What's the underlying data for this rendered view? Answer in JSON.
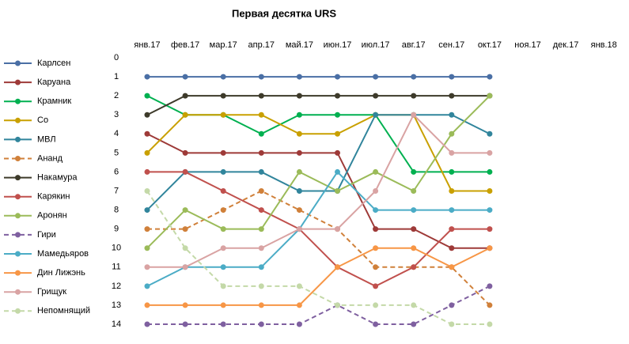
{
  "chart_data": {
    "type": "line",
    "title": "Первая десятка URS",
    "categories": [
      "янв.17",
      "фев.17",
      "мар.17",
      "апр.17",
      "май.17",
      "июн.17",
      "июл.17",
      "авг.17",
      "сен.17",
      "окт.17",
      "ноя.17",
      "дек.17",
      "янв.18"
    ],
    "ylim": [
      0,
      14
    ],
    "yticks": [
      0,
      1,
      2,
      3,
      4,
      5,
      6,
      7,
      8,
      9,
      10,
      11,
      12,
      13,
      14
    ],
    "y_reversed": true,
    "grid": false,
    "legend": "left",
    "series": [
      {
        "name": "Карлсен",
        "color": "#4a6fa5",
        "dashed": false,
        "values": [
          1,
          1,
          1,
          1,
          1,
          1,
          1,
          1,
          1,
          1,
          null,
          null,
          null
        ]
      },
      {
        "name": "Каруана",
        "color": "#9e3a38",
        "dashed": false,
        "values": [
          4,
          5,
          5,
          5,
          5,
          5,
          9,
          9,
          10,
          10,
          null,
          null,
          null
        ]
      },
      {
        "name": "Крамник",
        "color": "#00b050",
        "dashed": false,
        "values": [
          2,
          3,
          3,
          4,
          3,
          3,
          3,
          6,
          6,
          6,
          null,
          null,
          null
        ]
      },
      {
        "name": "Со",
        "color": "#c9a000",
        "dashed": false,
        "values": [
          5,
          3,
          3,
          3,
          4,
          4,
          3,
          3,
          7,
          7,
          null,
          null,
          null
        ]
      },
      {
        "name": "МВЛ",
        "color": "#31859c",
        "dashed": false,
        "values": [
          8,
          6,
          6,
          6,
          7,
          7,
          3,
          3,
          3,
          4,
          null,
          null,
          null
        ]
      },
      {
        "name": "Ананд",
        "color": "#d0803a",
        "dashed": true,
        "values": [
          9,
          9,
          8,
          7,
          8,
          9,
          11,
          11,
          11,
          13,
          null,
          null,
          null
        ]
      },
      {
        "name": "Накамура",
        "color": "#3d3a2a",
        "dashed": false,
        "values": [
          3,
          2,
          2,
          2,
          2,
          2,
          2,
          2,
          2,
          2,
          null,
          null,
          null
        ]
      },
      {
        "name": "Карякин",
        "color": "#c0504d",
        "dashed": false,
        "values": [
          6,
          6,
          7,
          8,
          9,
          11,
          12,
          11,
          9,
          9,
          null,
          null,
          null
        ]
      },
      {
        "name": "Аронян",
        "color": "#9bbb59",
        "dashed": false,
        "values": [
          10,
          8,
          9,
          9,
          6,
          7,
          6,
          7,
          4,
          2,
          null,
          null,
          null
        ]
      },
      {
        "name": "Гири",
        "color": "#7f60a0",
        "dashed": true,
        "values": [
          14,
          14,
          14,
          14,
          14,
          13,
          14,
          14,
          13,
          12,
          null,
          null,
          null
        ]
      },
      {
        "name": "Мамедьяров",
        "color": "#4bacc6",
        "dashed": false,
        "values": [
          12,
          11,
          11,
          11,
          9,
          6,
          8,
          8,
          8,
          8,
          null,
          null,
          null
        ]
      },
      {
        "name": "Дин Лижэнь",
        "color": "#f79646",
        "dashed": false,
        "values": [
          13,
          13,
          13,
          13,
          13,
          11,
          10,
          10,
          11,
          10,
          null,
          null,
          null
        ]
      },
      {
        "name": "Грищук",
        "color": "#d9a3a3",
        "dashed": false,
        "values": [
          11,
          11,
          10,
          10,
          9,
          9,
          7,
          3,
          5,
          5,
          null,
          null,
          null
        ]
      },
      {
        "name": "Непомнящий",
        "color": "#c4d9a8",
        "dashed": true,
        "values": [
          7,
          10,
          12,
          12,
          12,
          13,
          13,
          13,
          14,
          14,
          null,
          null,
          null
        ]
      }
    ]
  }
}
